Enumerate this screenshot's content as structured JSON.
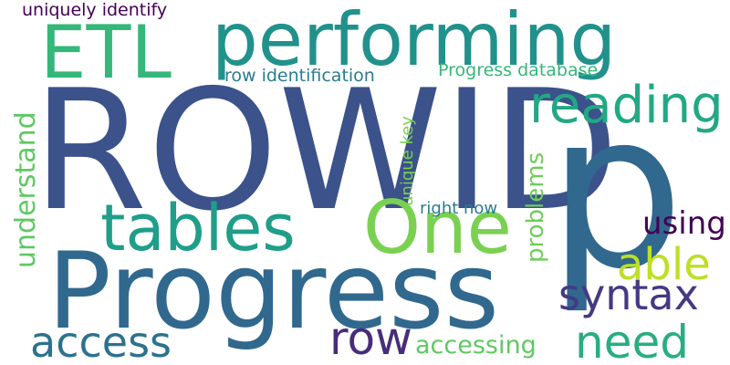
{
  "cloud": {
    "words": {
      "rowid": {
        "text": "ROWID",
        "color": "#3b528b"
      },
      "p": {
        "text": "p",
        "color": "#31688e"
      },
      "progress": {
        "text": "Progress",
        "color": "#31688e"
      },
      "performing": {
        "text": "performing",
        "color": "#21918c"
      },
      "etl": {
        "text": "ETL",
        "color": "#35b779"
      },
      "one": {
        "text": "One",
        "color": "#7ad151"
      },
      "tables": {
        "text": "tables",
        "color": "#1f9e89"
      },
      "reading": {
        "text": "reading",
        "color": "#22a884"
      },
      "able": {
        "text": "able",
        "color": "#bddf26"
      },
      "syntax": {
        "text": "syntax",
        "color": "#443983"
      },
      "access": {
        "text": "access",
        "color": "#2c728e"
      },
      "row": {
        "text": "row",
        "color": "#472d7b"
      },
      "need": {
        "text": "need",
        "color": "#28ae80"
      },
      "using": {
        "text": "using",
        "color": "#440154"
      },
      "accessing": {
        "text": "accessing",
        "color": "#5ec962"
      },
      "understand": {
        "text": "understand",
        "color": "#5ec962"
      },
      "problems": {
        "text": "problems",
        "color": "#6ece58"
      },
      "unique_key": {
        "text": "unique key",
        "color": "#7ad151"
      },
      "row_ident": {
        "text": "row identification",
        "color": "#287c8e"
      },
      "progress_db": {
        "text": "Progress database",
        "color": "#35b779"
      },
      "right_now": {
        "text": "right now",
        "color": "#287c8e"
      },
      "uniquely": {
        "text": "uniquely identify",
        "color": "#440154"
      }
    }
  }
}
